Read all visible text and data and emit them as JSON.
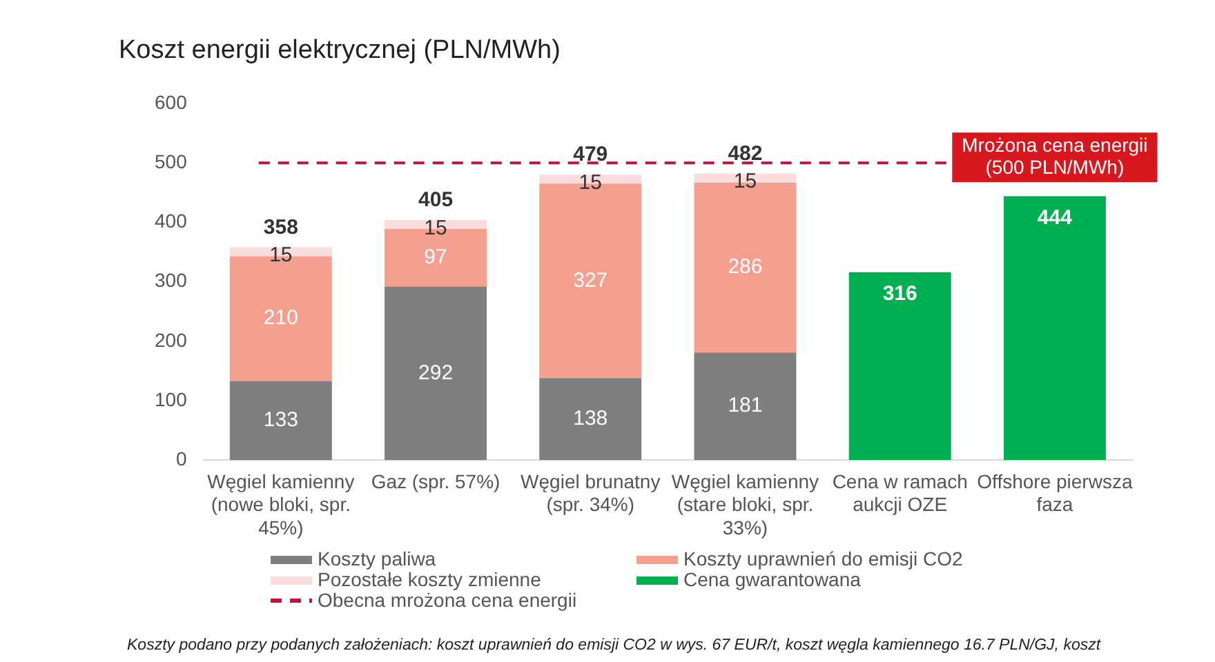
{
  "chart_data": {
    "type": "bar",
    "title": "Koszt energii elektrycznej (PLN/MWh)",
    "stacked": true,
    "categories": [
      "Węgiel kamienny (nowe bloki, spr. 45%)",
      "Gaz (spr. 57%)",
      "Węgiel brunatny (spr. 34%)",
      "Węgiel kamienny (stare bloki, spr. 33%)",
      "Cena w ramach aukcji OZE",
      "Offshore pierwsza faza"
    ],
    "series": [
      {
        "name": "Koszty paliwa",
        "color": "#7f7f7f",
        "values": [
          133,
          292,
          138,
          181,
          null,
          null
        ]
      },
      {
        "name": "Koszty uprawnień do emisji CO2",
        "color": "#f4a090",
        "values": [
          210,
          97,
          327,
          286,
          null,
          null
        ]
      },
      {
        "name": "Pozostałe koszty zmienne",
        "color": "#fbdcdc",
        "values": [
          15,
          15,
          15,
          15,
          null,
          null
        ]
      },
      {
        "name": "Cena gwarantowana",
        "color": "#00b050",
        "values": [
          null,
          null,
          null,
          null,
          316,
          444
        ]
      }
    ],
    "totals": [
      "358",
      "405",
      "479",
      "482",
      null,
      null
    ],
    "data_labels": true,
    "ylim": [
      0,
      600
    ],
    "yticks": [
      0,
      100,
      200,
      300,
      400,
      500,
      600
    ],
    "grid": false,
    "legend": "bottom",
    "ref_lines": [
      {
        "axis": "y",
        "value": 500,
        "label": "Obecna mrożona cena energii",
        "color": "#c0143c",
        "line_style": "dashed"
      }
    ],
    "annotations": [
      "Mrożona cena energii (500 PLN/MWh)",
      "Koszty podano przy podanych założeniach: koszt uprawnień do emisji CO2 w wys. 67 EUR/t, koszt węgla kamiennego 16.7 PLN/GJ, koszt"
    ]
  }
}
